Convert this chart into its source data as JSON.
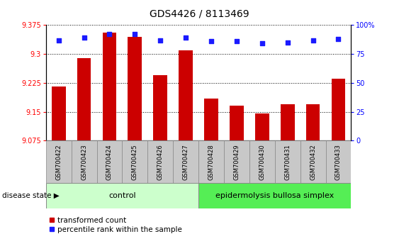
{
  "title": "GDS4426 / 8113469",
  "samples": [
    "GSM700422",
    "GSM700423",
    "GSM700424",
    "GSM700425",
    "GSM700426",
    "GSM700427",
    "GSM700428",
    "GSM700429",
    "GSM700430",
    "GSM700431",
    "GSM700432",
    "GSM700433"
  ],
  "bar_values": [
    9.215,
    9.29,
    9.355,
    9.345,
    9.245,
    9.31,
    9.185,
    9.165,
    9.145,
    9.17,
    9.17,
    9.235
  ],
  "percentile_values": [
    87,
    89,
    92,
    92,
    87,
    89,
    86,
    86,
    84,
    85,
    87,
    88
  ],
  "ylim_left": [
    9.075,
    9.375
  ],
  "ylim_right": [
    0,
    100
  ],
  "yticks_left": [
    9.075,
    9.15,
    9.225,
    9.3,
    9.375
  ],
  "ytick_labels_left": [
    "9.075",
    "9.15",
    "9.225",
    "9.3",
    "9.375"
  ],
  "yticks_right": [
    0,
    25,
    50,
    75,
    100
  ],
  "ytick_labels_right": [
    "0",
    "25",
    "50",
    "75",
    "100%"
  ],
  "bar_color": "#cc0000",
  "dot_color": "#1a1aff",
  "control_samples": 6,
  "control_label": "control",
  "disease_label": "epidermolysis bullosa simplex",
  "group_label": "disease state",
  "legend_bar": "transformed count",
  "legend_dot": "percentile rank within the sample",
  "control_bg": "#ccffcc",
  "disease_bg": "#55ee55",
  "sample_bg": "#c8c8c8",
  "plot_bg": "#ffffff"
}
